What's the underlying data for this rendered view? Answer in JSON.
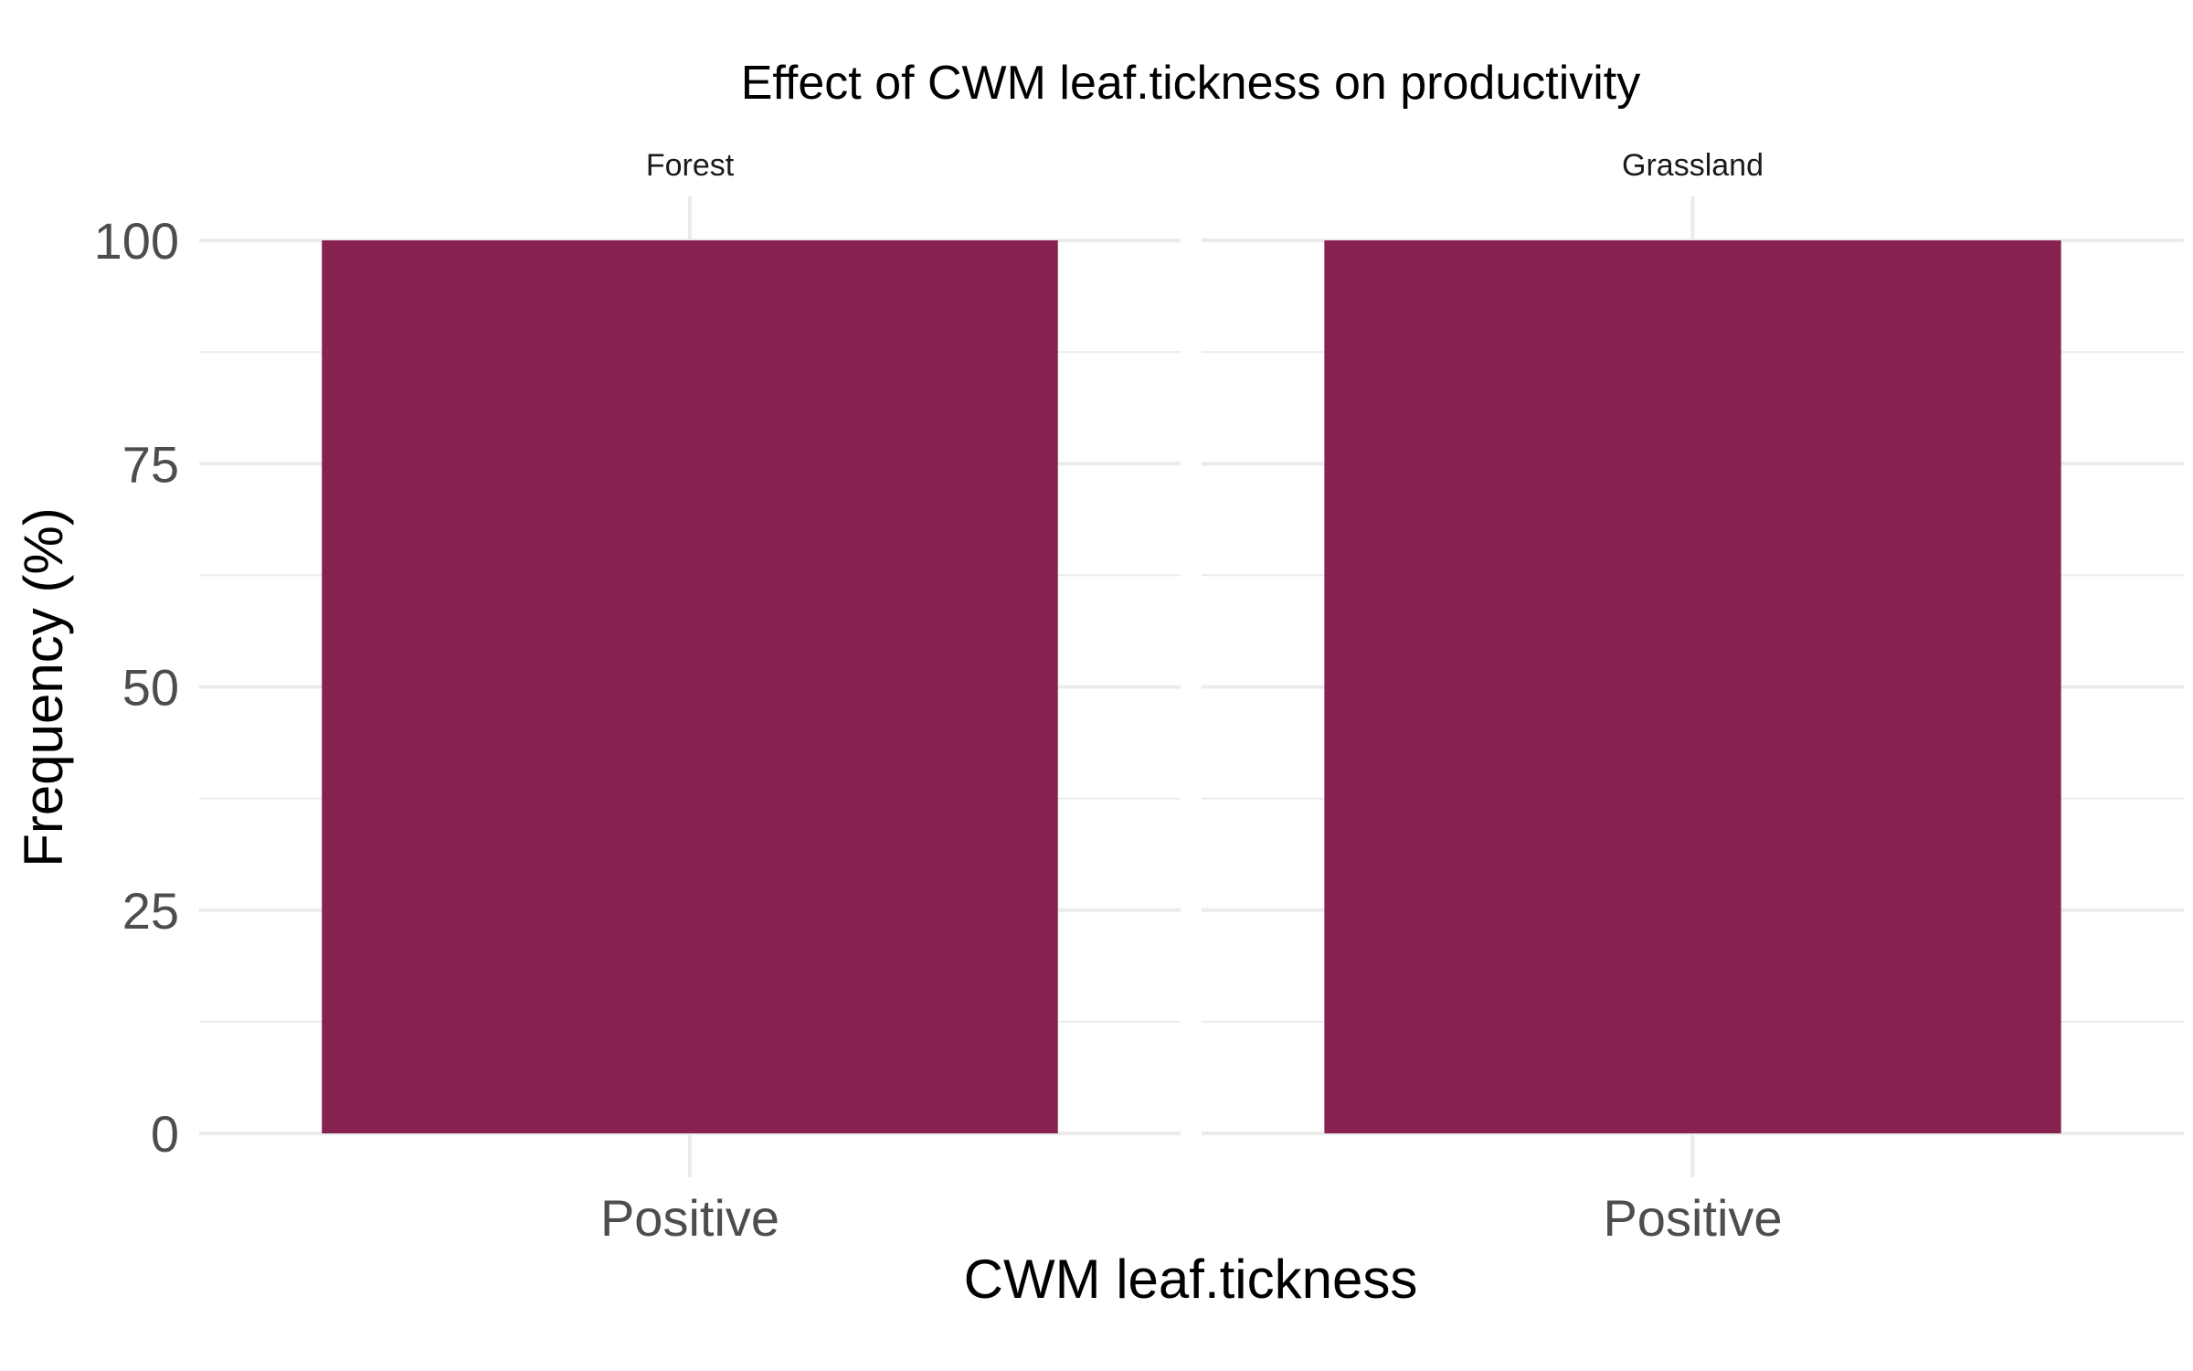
{
  "chart_data": {
    "type": "bar",
    "title": "Effect of CWM leaf.tickness on productivity",
    "xlabel": "CWM leaf.tickness",
    "ylabel": "Frequency (%)",
    "ylim": [
      0,
      100
    ],
    "yticks": [
      "0",
      "25",
      "50",
      "75",
      "100"
    ],
    "grid": true,
    "facets": [
      {
        "label": "Forest",
        "categories": [
          "Positive"
        ],
        "values": [
          100
        ]
      },
      {
        "label": "Grassland",
        "categories": [
          "Positive"
        ],
        "values": [
          100
        ]
      }
    ],
    "bar_color": "#87214f"
  }
}
